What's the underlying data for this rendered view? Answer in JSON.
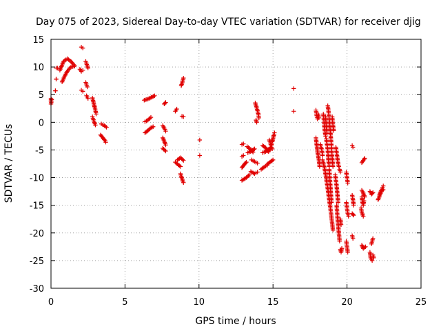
{
  "chart_data": {
    "type": "scatter",
    "title": "Day 075 of 2023, Sidereal Day-to-day VTEC variation (SDTVAR) for receiver djig",
    "xlabel": "GPS time / hours",
    "ylabel": "SDTVAR / TECUs",
    "xlim": [
      0,
      25
    ],
    "ylim": [
      -30,
      15
    ],
    "xticks": [
      "0",
      "5",
      "10",
      "15",
      "20",
      "25"
    ],
    "yticks": [
      "15",
      "10",
      "5",
      "0",
      "-5",
      "-10",
      "-15",
      "-20",
      "-25",
      "-30"
    ],
    "grid": true,
    "legend": "none",
    "marker": "plus",
    "color": "#e00000",
    "segments": [
      [
        [
          0.0,
          3.8
        ],
        [
          0.0,
          4.3
        ]
      ],
      [
        [
          0.0,
          3.3
        ],
        [
          0.05,
          4.1
        ]
      ],
      [
        [
          0.3,
          5.7
        ],
        [
          0.3,
          5.7
        ]
      ],
      [
        [
          0.35,
          7.8
        ],
        [
          0.35,
          7.8
        ]
      ],
      [
        [
          0.35,
          9.8
        ],
        [
          0.45,
          9.8
        ]
      ],
      [
        [
          0.6,
          9.4
        ],
        [
          0.85,
          11.0
        ],
        [
          1.1,
          11.5
        ],
        [
          1.35,
          11.0
        ],
        [
          1.6,
          10.2
        ]
      ],
      [
        [
          0.75,
          7.3
        ],
        [
          0.95,
          8.5
        ],
        [
          1.15,
          9.4
        ],
        [
          1.35,
          10.0
        ],
        [
          1.55,
          10.1
        ]
      ],
      [
        [
          2.05,
          13.6
        ],
        [
          2.15,
          13.4
        ]
      ],
      [
        [
          1.95,
          9.6
        ],
        [
          2.05,
          9.2
        ],
        [
          2.15,
          9.4
        ]
      ],
      [
        [
          2.05,
          5.8
        ],
        [
          2.15,
          5.6
        ]
      ],
      [
        [
          2.35,
          11.0
        ],
        [
          2.45,
          10.2
        ],
        [
          2.5,
          9.8
        ]
      ],
      [
        [
          2.35,
          7.2
        ],
        [
          2.45,
          6.4
        ]
      ],
      [
        [
          2.4,
          4.8
        ],
        [
          2.5,
          4.3
        ]
      ],
      [
        [
          2.8,
          4.4
        ],
        [
          2.9,
          3.3
        ],
        [
          3.0,
          2.2
        ],
        [
          3.05,
          1.5
        ]
      ],
      [
        [
          2.8,
          1.0
        ],
        [
          2.9,
          0.2
        ],
        [
          3.0,
          -0.5
        ]
      ],
      [
        [
          3.4,
          -0.3
        ],
        [
          3.6,
          -0.6
        ],
        [
          3.75,
          -0.9
        ]
      ],
      [
        [
          3.35,
          -2.3
        ],
        [
          3.5,
          -2.8
        ],
        [
          3.65,
          -3.3
        ],
        [
          3.7,
          -3.6
        ]
      ],
      [
        [
          6.3,
          4.0
        ],
        [
          6.55,
          4.2
        ],
        [
          6.85,
          4.6
        ],
        [
          7.0,
          4.8
        ]
      ],
      [
        [
          6.35,
          0.1
        ],
        [
          6.55,
          0.4
        ],
        [
          6.75,
          0.9
        ]
      ],
      [
        [
          6.35,
          -1.9
        ],
        [
          6.55,
          -1.5
        ],
        [
          6.75,
          -1.0
        ],
        [
          6.9,
          -0.8
        ]
      ],
      [
        [
          7.55,
          -0.6
        ],
        [
          7.7,
          -1.3
        ],
        [
          7.75,
          -1.6
        ]
      ],
      [
        [
          7.55,
          -2.8
        ],
        [
          7.65,
          -3.4
        ],
        [
          7.75,
          -4.1
        ]
      ],
      [
        [
          7.55,
          -4.7
        ],
        [
          7.75,
          -5.2
        ]
      ],
      [
        [
          7.65,
          3.3
        ],
        [
          7.75,
          3.6
        ]
      ],
      [
        [
          8.4,
          2.0
        ],
        [
          8.5,
          2.4
        ]
      ],
      [
        [
          8.4,
          -7.2
        ],
        [
          8.6,
          -7.7
        ],
        [
          8.75,
          -8.0
        ]
      ],
      [
        [
          8.55,
          -6.8
        ],
        [
          8.75,
          -6.4
        ],
        [
          8.95,
          -6.9
        ]
      ],
      [
        [
          8.75,
          -9.3
        ],
        [
          8.85,
          -10.2
        ],
        [
          8.95,
          -10.9
        ]
      ],
      [
        [
          8.8,
          6.6
        ],
        [
          8.9,
          7.5
        ],
        [
          8.95,
          8.0
        ]
      ],
      [
        [
          8.85,
          1.1
        ],
        [
          8.95,
          1.0
        ]
      ],
      [
        [
          10.05,
          -3.2
        ]
      ],
      [
        [
          10.05,
          -6.0
        ]
      ],
      [
        [
          12.9,
          -4.0
        ],
        [
          13.0,
          -3.9
        ]
      ],
      [
        [
          12.9,
          -6.2
        ],
        [
          13.0,
          -6.0
        ]
      ],
      [
        [
          12.9,
          -8.2
        ],
        [
          13.1,
          -7.5
        ],
        [
          13.2,
          -7.2
        ]
      ],
      [
        [
          12.9,
          -10.5
        ],
        [
          13.2,
          -10.0
        ],
        [
          13.4,
          -9.5
        ]
      ],
      [
        [
          13.25,
          -4.4
        ],
        [
          13.5,
          -4.9
        ],
        [
          13.65,
          -5.4
        ]
      ],
      [
        [
          13.3,
          -5.5
        ],
        [
          13.55,
          -5.2
        ],
        [
          13.75,
          -4.8
        ]
      ],
      [
        [
          13.5,
          -8.9
        ],
        [
          13.75,
          -9.3
        ],
        [
          13.95,
          -9.0
        ]
      ],
      [
        [
          13.55,
          -6.8
        ],
        [
          13.75,
          -7.1
        ],
        [
          13.95,
          -7.4
        ]
      ],
      [
        [
          13.8,
          3.5
        ],
        [
          13.9,
          2.6
        ],
        [
          14.0,
          1.6
        ],
        [
          14.05,
          0.8
        ]
      ],
      [
        [
          13.85,
          0.4
        ],
        [
          13.9,
          0.0
        ]
      ],
      [
        [
          14.2,
          -8.5
        ],
        [
          14.4,
          -8.1
        ],
        [
          14.6,
          -7.8
        ]
      ],
      [
        [
          14.3,
          -4.2
        ],
        [
          14.5,
          -4.6
        ],
        [
          14.65,
          -5.2
        ]
      ],
      [
        [
          14.3,
          -5.5
        ],
        [
          14.5,
          -5.3
        ],
        [
          14.7,
          -4.9
        ]
      ],
      [
        [
          14.6,
          -7.6
        ],
        [
          14.8,
          -7.2
        ],
        [
          15.0,
          -6.8
        ]
      ],
      [
        [
          14.7,
          -5.3
        ],
        [
          14.85,
          -4.5
        ],
        [
          14.95,
          -3.5
        ],
        [
          15.05,
          -2.4
        ],
        [
          15.1,
          -1.9
        ]
      ],
      [
        [
          14.75,
          -3.2
        ],
        [
          14.85,
          -4.0
        ],
        [
          14.95,
          -4.8
        ]
      ],
      [
        [
          16.4,
          6.1
        ]
      ],
      [
        [
          16.4,
          2.0
        ]
      ],
      [
        [
          17.9,
          2.2
        ],
        [
          17.95,
          1.2
        ],
        [
          18.0,
          0.6
        ]
      ],
      [
        [
          17.9,
          -2.8
        ],
        [
          17.95,
          -4.0
        ],
        [
          18.0,
          -5.2
        ],
        [
          18.1,
          -6.8
        ],
        [
          18.15,
          -8.0
        ]
      ],
      [
        [
          18.05,
          1.5
        ],
        [
          18.1,
          0.8
        ]
      ],
      [
        [
          18.2,
          -4.0
        ],
        [
          18.3,
          -5.0
        ],
        [
          18.35,
          -6.0
        ]
      ],
      [
        [
          18.35,
          -6.8
        ],
        [
          18.5,
          -8.5
        ],
        [
          18.6,
          -10.2
        ],
        [
          18.7,
          -12.0
        ],
        [
          18.8,
          -14.0
        ],
        [
          18.9,
          -16.0
        ],
        [
          19.0,
          -18.3
        ],
        [
          19.05,
          -19.5
        ]
      ],
      [
        [
          18.4,
          1.5
        ],
        [
          18.45,
          0.0
        ],
        [
          18.5,
          -1.5
        ],
        [
          18.55,
          -2.5
        ]
      ],
      [
        [
          18.55,
          1.0
        ],
        [
          18.6,
          -0.5
        ],
        [
          18.65,
          -2.0
        ]
      ],
      [
        [
          18.6,
          -3.0
        ],
        [
          18.7,
          -5.0
        ],
        [
          18.75,
          -7.0
        ],
        [
          18.8,
          -8.0
        ]
      ],
      [
        [
          18.7,
          3.0
        ],
        [
          18.75,
          2.0
        ],
        [
          18.8,
          0.5
        ],
        [
          18.85,
          -1.0
        ],
        [
          18.9,
          -2.5
        ],
        [
          18.95,
          -4.5
        ],
        [
          19.0,
          -6.5
        ],
        [
          19.05,
          -8.0
        ]
      ],
      [
        [
          18.8,
          -8.5
        ],
        [
          18.85,
          -10.5
        ],
        [
          18.9,
          -12.5
        ],
        [
          18.95,
          -14.5
        ]
      ],
      [
        [
          19.0,
          1.0
        ],
        [
          19.05,
          -0.5
        ],
        [
          19.1,
          -1.5
        ]
      ],
      [
        [
          19.25,
          -4.5
        ],
        [
          19.3,
          -5.5
        ],
        [
          19.35,
          -6.5
        ],
        [
          19.4,
          -7.5
        ],
        [
          19.45,
          -8.0
        ]
      ],
      [
        [
          19.2,
          -9.5
        ],
        [
          19.3,
          -11.5
        ],
        [
          19.35,
          -13.0
        ],
        [
          19.4,
          -14.5
        ]
      ],
      [
        [
          19.3,
          -15.0
        ],
        [
          19.35,
          -17.0
        ],
        [
          19.4,
          -18.5
        ],
        [
          19.45,
          -20.0
        ],
        [
          19.5,
          -21.5
        ]
      ],
      [
        [
          19.5,
          -8.5
        ],
        [
          19.55,
          -9.0
        ]
      ],
      [
        [
          19.55,
          -23.0
        ],
        [
          19.6,
          -23.5
        ],
        [
          19.65,
          -22.8
        ]
      ],
      [
        [
          19.55,
          -17.5
        ],
        [
          19.6,
          -18.5
        ]
      ],
      [
        [
          19.95,
          -9.0
        ],
        [
          20.0,
          -10.0
        ],
        [
          20.05,
          -11.0
        ]
      ],
      [
        [
          19.95,
          -14.5
        ],
        [
          20.0,
          -15.5
        ],
        [
          20.05,
          -16.5
        ],
        [
          20.1,
          -17.0
        ]
      ],
      [
        [
          19.95,
          -21.5
        ],
        [
          20.0,
          -22.5
        ],
        [
          20.05,
          -23.5
        ]
      ],
      [
        [
          20.35,
          -4.2
        ],
        [
          20.4,
          -4.5
        ]
      ],
      [
        [
          20.35,
          -13.2
        ],
        [
          20.4,
          -14.0
        ],
        [
          20.45,
          -15.0
        ]
      ],
      [
        [
          20.35,
          -16.5
        ],
        [
          20.45,
          -16.8
        ]
      ],
      [
        [
          20.35,
          -20.5
        ],
        [
          20.4,
          -21.0
        ]
      ],
      [
        [
          20.95,
          -15.5
        ],
        [
          21.0,
          -16.3
        ],
        [
          21.1,
          -17.0
        ]
      ],
      [
        [
          21.0,
          -13.5
        ],
        [
          21.05,
          -14.5
        ],
        [
          21.1,
          -15.0
        ],
        [
          21.15,
          -14.2
        ]
      ],
      [
        [
          21.0,
          -7.3
        ],
        [
          21.1,
          -6.9
        ],
        [
          21.2,
          -6.5
        ]
      ],
      [
        [
          21.0,
          -12.3
        ],
        [
          21.1,
          -12.8
        ],
        [
          21.2,
          -13.5
        ]
      ],
      [
        [
          21.0,
          -22.2
        ],
        [
          21.1,
          -22.8
        ],
        [
          21.25,
          -22.5
        ]
      ],
      [
        [
          21.55,
          -23.5
        ],
        [
          21.6,
          -24.5
        ],
        [
          21.7,
          -25.0
        ]
      ],
      [
        [
          21.55,
          -12.5
        ],
        [
          21.65,
          -13.0
        ],
        [
          21.75,
          -12.7
        ]
      ],
      [
        [
          21.65,
          -22.0
        ],
        [
          21.7,
          -21.5
        ],
        [
          21.75,
          -21.0
        ]
      ],
      [
        [
          21.75,
          -24.0
        ],
        [
          21.8,
          -24.5
        ]
      ],
      [
        [
          22.1,
          -14.0
        ],
        [
          22.2,
          -13.3
        ],
        [
          22.3,
          -12.6
        ],
        [
          22.4,
          -11.8
        ],
        [
          22.45,
          -11.5
        ]
      ],
      [
        [
          22.2,
          -13.0
        ],
        [
          22.3,
          -12.4
        ],
        [
          22.45,
          -12.2
        ]
      ]
    ]
  }
}
